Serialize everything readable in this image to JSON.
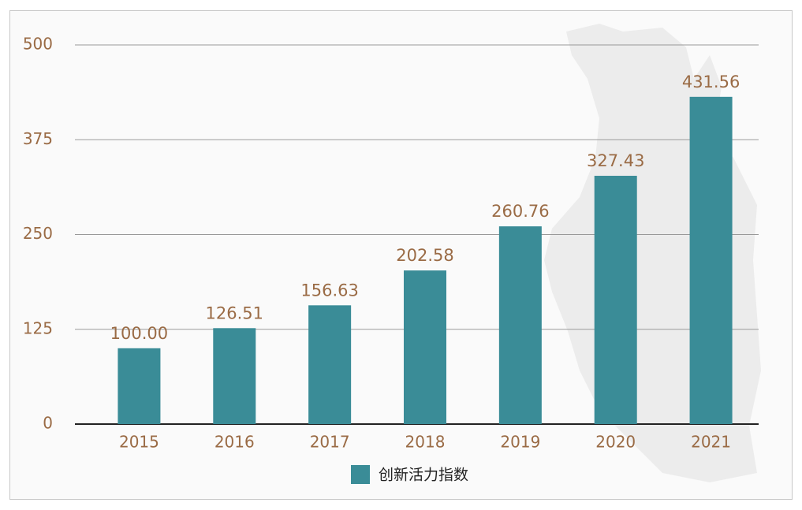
{
  "chart_data": {
    "type": "bar",
    "categories": [
      "2015",
      "2016",
      "2017",
      "2018",
      "2019",
      "2020",
      "2021"
    ],
    "series": [
      {
        "name": "创新活力指数",
        "color": "#3a8c97",
        "values": [
          100.0,
          126.51,
          156.63,
          202.58,
          260.76,
          327.43,
          431.56
        ],
        "value_labels": [
          "100.00",
          "126.51",
          "156.63",
          "202.58",
          "260.76",
          "327.43",
          "431.56"
        ]
      }
    ],
    "ylim": [
      0,
      500
    ],
    "yticks": [
      0,
      125,
      250,
      375,
      500
    ],
    "grid": true,
    "legend": "bottom"
  }
}
